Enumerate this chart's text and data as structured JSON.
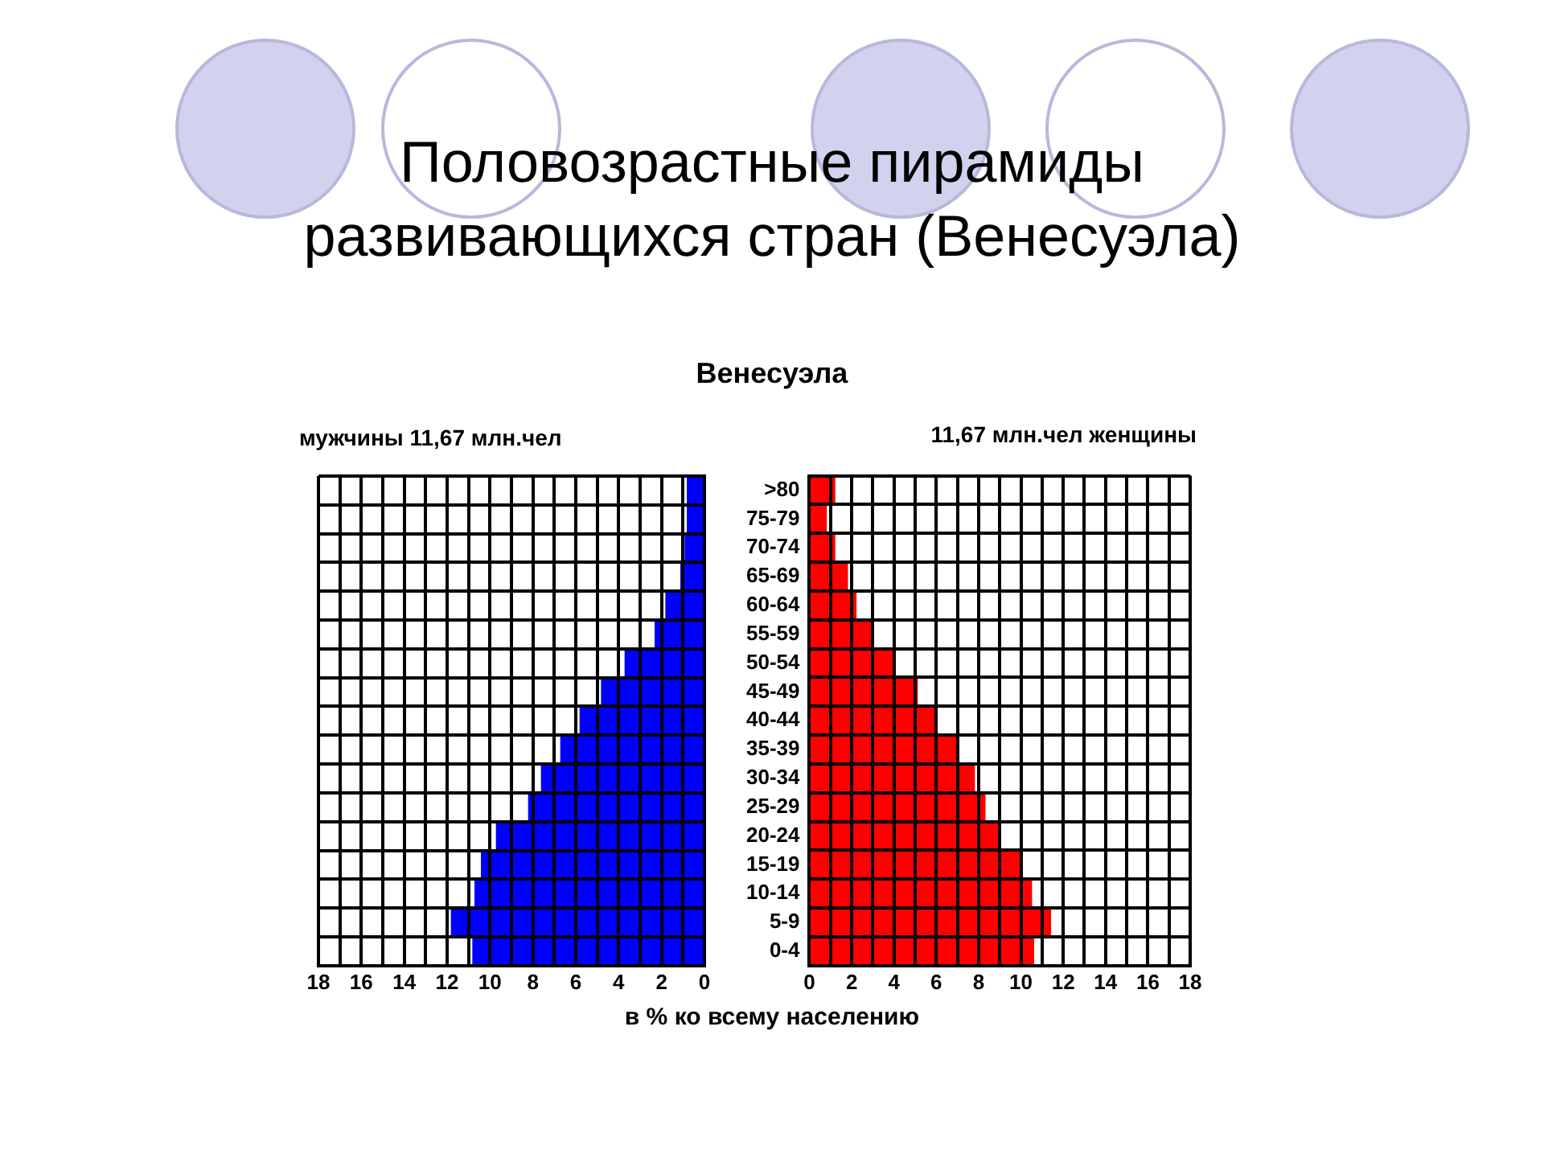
{
  "chart_data": [
    {
      "type": "bar",
      "orientation": "horizontal",
      "title": "Половозрастные пирамиды развивающихся стран (Венесуэла)",
      "subtitle": "Венесуэла",
      "annotations": [
        "мужчины 11,67 млн.чел"
      ],
      "xlabel": "в % ко всему населению",
      "series": [
        {
          "color": "#0000ff",
          "values": [
            0.8,
            0.8,
            0.9,
            1.1,
            1.8,
            2.3,
            3.7,
            4.8,
            5.8,
            6.7,
            7.6,
            8.2,
            9.7,
            10.4,
            10.7,
            11.8,
            10.8
          ]
        }
      ],
      "xlim": [
        18,
        0
      ],
      "xticks": [
        18,
        {
          "value": 17,
          "label": null
        },
        16,
        {
          "value": 15,
          "label": null
        },
        14,
        {
          "value": 13,
          "label": null
        },
        12,
        {
          "value": 11,
          "label": null
        },
        10,
        {
          "value": 9,
          "label": null
        },
        8,
        {
          "value": 7,
          "label": null
        },
        6,
        {
          "value": 5,
          "label": null
        },
        4,
        {
          "value": 3,
          "label": null
        },
        2,
        {
          "value": 1,
          "label": null
        },
        0
      ],
      "grid": true,
      "tick_labels": "x"
    },
    {
      "type": "bar",
      "orientation": "horizontal",
      "annotations": [
        "11,67 млн.чел женщины"
      ],
      "categories": [
        ">80",
        "75-79",
        "70-74",
        "65-69",
        "60-64",
        "55-59",
        "50-54",
        "45-49",
        "40-44",
        "35-39",
        "30-34",
        "25-29",
        "20-24",
        "15-19",
        "10-14",
        "5-9",
        "0-4"
      ],
      "series": [
        {
          "color": "#ff0000",
          "values": [
            1.2,
            0.8,
            1.2,
            1.8,
            2.2,
            2.9,
            4.0,
            5.1,
            6.0,
            7.0,
            7.8,
            8.3,
            9.0,
            10.0,
            10.5,
            11.4,
            10.6
          ]
        }
      ],
      "xlim": [
        0,
        18
      ],
      "xticks": [
        0,
        {
          "value": 1,
          "label": null
        },
        2,
        {
          "value": 3,
          "label": null
        },
        4,
        {
          "value": 5,
          "label": null
        },
        6,
        {
          "value": 7,
          "label": null
        },
        8,
        {
          "value": 9,
          "label": null
        },
        10,
        {
          "value": 11,
          "label": null
        },
        12,
        {
          "value": 13,
          "label": null
        },
        14,
        {
          "value": 15,
          "label": null
        },
        16,
        {
          "value": 17,
          "label": null
        },
        18
      ],
      "grid": true
    }
  ]
}
